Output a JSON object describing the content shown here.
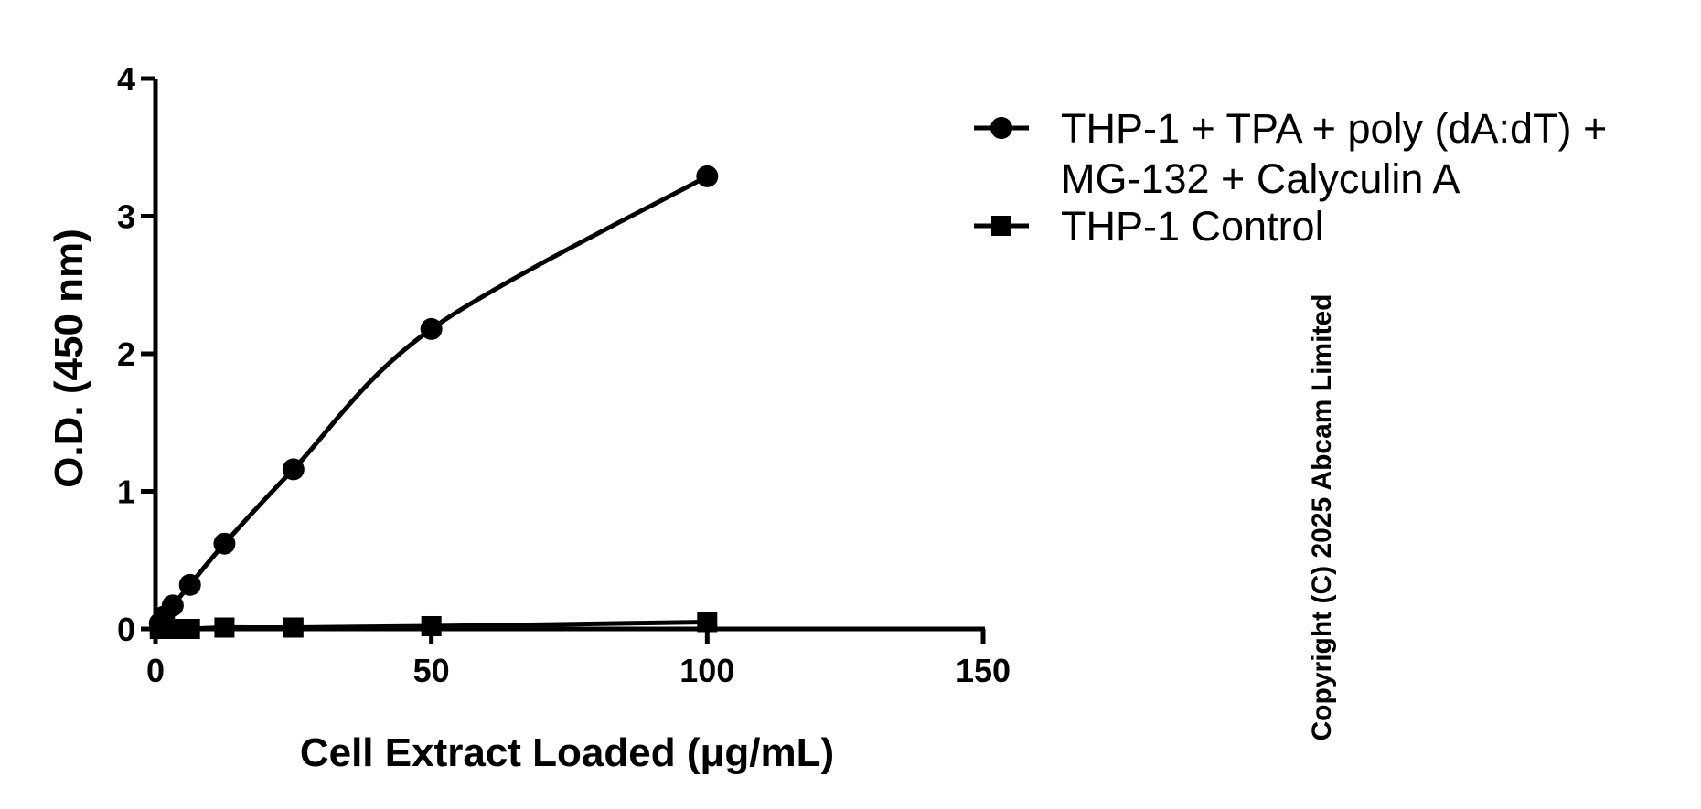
{
  "chart_data": {
    "type": "line",
    "xlabel": "Cell Extract Loaded (μg/mL)",
    "ylabel": "O.D. (450 nm)",
    "xlim": [
      0,
      150
    ],
    "ylim": [
      0,
      4
    ],
    "xticks": [
      "0",
      "50",
      "100",
      "150"
    ],
    "yticks": [
      "0",
      "1",
      "2",
      "3",
      "4"
    ],
    "grid": false,
    "legend_position": "top-right",
    "series": [
      {
        "name_lines": [
          "THP-1 + TPA + poly (dA:dT) +",
          "MG-132 + Calyculin A"
        ],
        "marker": "circle",
        "color": "#000000",
        "x": [
          0.78,
          1.56,
          3.13,
          6.25,
          12.5,
          25,
          50,
          100
        ],
        "y": [
          0.04,
          0.09,
          0.17,
          0.32,
          0.62,
          1.16,
          2.18,
          3.29
        ]
      },
      {
        "name_lines": [
          "THP-1 Control"
        ],
        "marker": "square",
        "color": "#000000",
        "x": [
          0.78,
          1.56,
          3.13,
          6.25,
          12.5,
          25,
          50,
          100
        ],
        "y": [
          0.0,
          0.0,
          0.0,
          0.0,
          0.01,
          0.01,
          0.02,
          0.05
        ]
      }
    ]
  },
  "copyright": "Copyright (C) 2025 Abcam Limited"
}
